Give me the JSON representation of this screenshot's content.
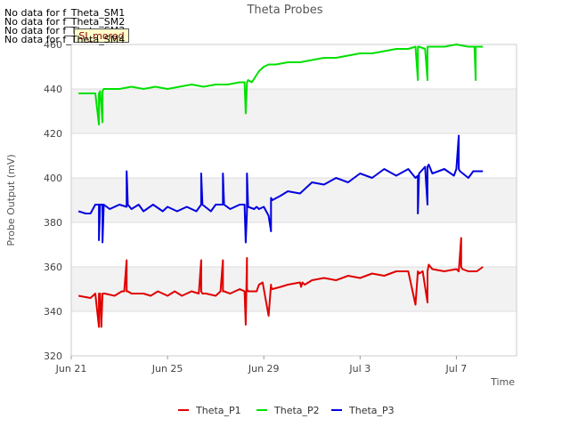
{
  "nodata_messages": [
    "No data for f_Theta_SM1",
    "No data for f_Theta_SM2",
    "No data for f_Theta_SM3",
    "No data for f_Theta_SM4"
  ],
  "badge_label": "SI_mored",
  "chart_data": {
    "type": "line",
    "title": "Theta Probes",
    "xlabel": "Time",
    "ylabel": "Probe Output (mV)",
    "ylim": [
      320,
      460
    ],
    "yticks": [
      320,
      340,
      360,
      380,
      400,
      420,
      440,
      460
    ],
    "xlim": [
      0,
      18.5
    ],
    "xtick_values": [
      0,
      4,
      8,
      12,
      16
    ],
    "xtick_labels": [
      "Jun 21",
      "Jun 25",
      "Jun 29",
      "Jul 3",
      "Jul 7"
    ],
    "grid_bands": [
      [
        340,
        360
      ],
      [
        380,
        400
      ],
      [
        420,
        440
      ]
    ],
    "legend_position": "bottom-center",
    "series": [
      {
        "name": "Theta_P1",
        "color": "#e00000",
        "x": [
          0.3,
          0.8,
          1,
          1.15,
          1.15,
          1.2,
          1.25,
          1.3,
          1.3,
          1.35,
          1.4,
          1.8,
          2.1,
          2.2,
          2.3,
          2.3,
          2.35,
          2.5,
          3,
          3.3,
          3.6,
          4,
          4.3,
          4.6,
          5,
          5.3,
          5.4,
          5.4,
          5.45,
          5.6,
          6,
          6.2,
          6.3,
          6.3,
          6.35,
          6.6,
          7,
          7.2,
          7.25,
          7.3,
          7.3,
          7.35,
          7.6,
          7.7,
          7.8,
          7.95,
          8.2,
          8.3,
          8.3,
          8.35,
          8.7,
          9,
          9.5,
          9.55,
          9.6,
          9.7,
          10,
          10.5,
          11,
          11.5,
          12,
          12.5,
          13,
          13.5,
          14,
          14.3,
          14.4,
          14.4,
          14.45,
          14.6,
          14.8,
          14.8,
          14.85,
          15,
          15.5,
          16,
          16.1,
          16.2,
          16.2,
          16.25,
          16.5,
          16.7,
          16.85,
          17.1
        ],
        "values": [
          347,
          346,
          348,
          333,
          348,
          348,
          333,
          348,
          348,
          348,
          348,
          347,
          349,
          349,
          363,
          349,
          349,
          348,
          348,
          347,
          349,
          347,
          349,
          347,
          349,
          348,
          363,
          349,
          348,
          348,
          347,
          349,
          363,
          349,
          349,
          348,
          350,
          349,
          334,
          364,
          350,
          349,
          349,
          349,
          352,
          353,
          338,
          352,
          351,
          350,
          351,
          352,
          353,
          351,
          353,
          352,
          354,
          355,
          354,
          356,
          355,
          357,
          356,
          358,
          358,
          343,
          358,
          358,
          357,
          358,
          344,
          358,
          361,
          359,
          358,
          359,
          358,
          373,
          360,
          359,
          358,
          358,
          358,
          360
        ]
      },
      {
        "name": "Theta_P2",
        "color": "#00e000",
        "x": [
          0.3,
          0.8,
          1,
          1.15,
          1.15,
          1.2,
          1.3,
          1.3,
          1.35,
          1.5,
          2,
          2.5,
          3,
          3.5,
          4,
          4.5,
          5,
          5.5,
          6,
          6.5,
          7,
          7.2,
          7.25,
          7.3,
          7.3,
          7.35,
          7.5,
          7.8,
          8,
          8.2,
          8.5,
          9,
          9.5,
          10,
          10.5,
          11,
          11.5,
          12,
          12.5,
          13,
          13.5,
          14,
          14.3,
          14.4,
          14.4,
          14.45,
          14.7,
          14.8,
          14.8,
          14.85,
          15,
          15.5,
          16,
          16.5,
          16.75,
          16.8,
          16.8,
          16.85,
          17.1
        ],
        "values": [
          438,
          438,
          438,
          424,
          438,
          439,
          425,
          439,
          440,
          440,
          440,
          441,
          440,
          441,
          440,
          441,
          442,
          441,
          442,
          442,
          443,
          443,
          429,
          443,
          443,
          444,
          443,
          448,
          450,
          451,
          451,
          452,
          452,
          453,
          454,
          454,
          455,
          456,
          456,
          457,
          458,
          458,
          459,
          444,
          459,
          459,
          458,
          444,
          459,
          459,
          459,
          459,
          460,
          459,
          459,
          444,
          459,
          459,
          459
        ]
      },
      {
        "name": "Theta_P3",
        "color": "#0000e0",
        "x": [
          0.3,
          0.6,
          0.8,
          1,
          1.15,
          1.15,
          1.2,
          1.3,
          1.3,
          1.35,
          1.6,
          2,
          2.3,
          2.3,
          2.35,
          2.5,
          2.8,
          3,
          3.4,
          3.8,
          4,
          4.4,
          4.8,
          5.2,
          5.4,
          5.4,
          5.45,
          5.8,
          6,
          6.3,
          6.3,
          6.35,
          6.6,
          7,
          7.2,
          7.25,
          7.3,
          7.3,
          7.35,
          7.6,
          7.7,
          7.8,
          8,
          8.2,
          8.3,
          8.3,
          8.35,
          8.7,
          9,
          9.5,
          10,
          10.5,
          11,
          11.5,
          12,
          12.5,
          13,
          13.5,
          14,
          14.3,
          14.4,
          14.4,
          14.45,
          14.7,
          14.8,
          14.8,
          14.85,
          15,
          15.5,
          15.9,
          16,
          16.1,
          16.1,
          16.15,
          16.5,
          16.7,
          17.1
        ],
        "values": [
          385,
          384,
          384,
          388,
          388,
          372,
          388,
          388,
          371,
          388,
          386,
          388,
          387,
          403,
          388,
          386,
          388,
          385,
          388,
          385,
          387,
          385,
          387,
          385,
          388,
          402,
          388,
          385,
          388,
          388,
          402,
          388,
          386,
          388,
          388,
          371,
          385,
          402,
          387,
          386,
          387,
          386,
          387,
          383,
          376,
          391,
          390,
          392,
          394,
          393,
          398,
          397,
          400,
          398,
          402,
          400,
          404,
          401,
          404,
          400,
          401,
          384,
          402,
          405,
          388,
          405,
          406,
          402,
          404,
          401,
          404,
          419,
          404,
          403,
          400,
          403,
          403
        ]
      }
    ]
  }
}
